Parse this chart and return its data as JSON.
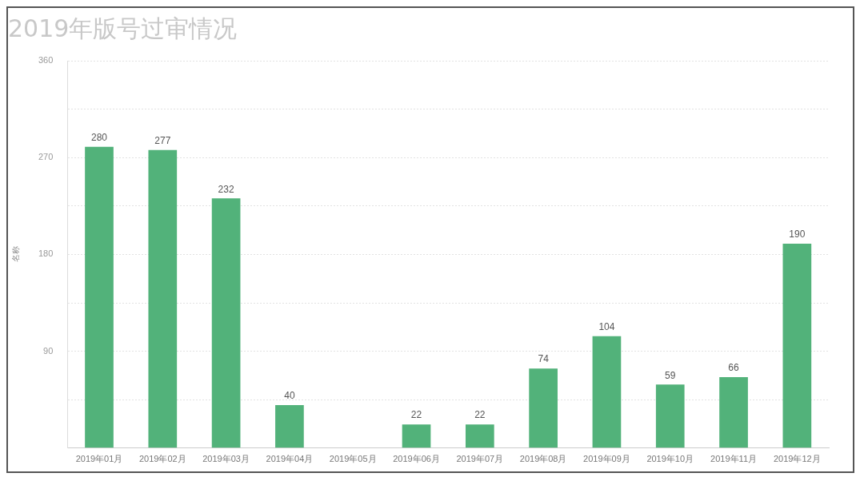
{
  "chart_data": {
    "type": "bar",
    "title": "2019年版号过审情况",
    "ylabel": "名称",
    "categories": [
      "2019年01月",
      "2019年02月",
      "2019年03月",
      "2019年04月",
      "2019年05月",
      "2019年06月",
      "2019年07月",
      "2019年08月",
      "2019年09月",
      "2019年10月",
      "2019年11月",
      "2019年12月"
    ],
    "values": [
      280,
      277,
      232,
      40,
      null,
      22,
      22,
      74,
      104,
      59,
      66,
      190
    ],
    "value_labels": [
      "280",
      "277",
      "232",
      "40",
      null,
      "22",
      "22",
      "74",
      "104",
      "59",
      "66",
      "190"
    ],
    "color": "#52b27a",
    "ylim": [
      0,
      360
    ],
    "yticks": [
      {
        "value": 0,
        "label": null
      },
      {
        "value": 45,
        "label": null
      },
      90,
      {
        "value": 135,
        "label": null
      },
      180,
      {
        "value": 225,
        "label": null
      },
      270,
      {
        "value": 315,
        "label": null
      },
      360
    ],
    "grid": "y",
    "legend": false
  }
}
